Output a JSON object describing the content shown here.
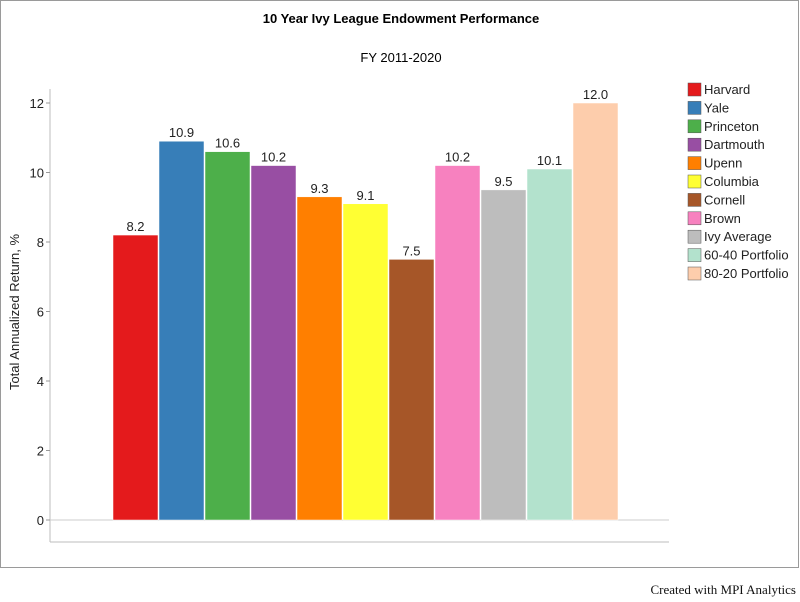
{
  "chart_data": {
    "type": "bar",
    "title": "10 Year Ivy League Endowment Performance",
    "subtitle": "FY 2011-2020",
    "ylabel": "Total Annualized Return, %",
    "xlabel": "",
    "ylim": [
      0,
      12.5
    ],
    "yticks": [
      0,
      2,
      4,
      6,
      8,
      10,
      12
    ],
    "grid": false,
    "legend_position": "right",
    "categories": [
      "Harvard",
      "Yale",
      "Princeton",
      "Dartmouth",
      "Upenn",
      "Columbia",
      "Cornell",
      "Brown",
      "Ivy Average",
      "60-40 Portfolio",
      "80-20 Portfolio"
    ],
    "values": [
      8.2,
      10.9,
      10.6,
      10.2,
      9.3,
      9.1,
      7.5,
      10.2,
      9.5,
      10.1,
      12.0
    ],
    "value_labels": [
      "8.2",
      "10.9",
      "10.6",
      "10.2",
      "9.3",
      "9.1",
      "7.5",
      "10.2",
      "9.5",
      "10.1",
      "12.0"
    ],
    "colors": [
      "#e41a1c",
      "#377eb8",
      "#4daf4a",
      "#984ea3",
      "#ff7f00",
      "#ffff33",
      "#a65628",
      "#f781bf",
      "#bdbdbd",
      "#b3e2cd",
      "#fdcdac"
    ]
  },
  "footer": {
    "credit": "Created with MPI Analytics"
  }
}
